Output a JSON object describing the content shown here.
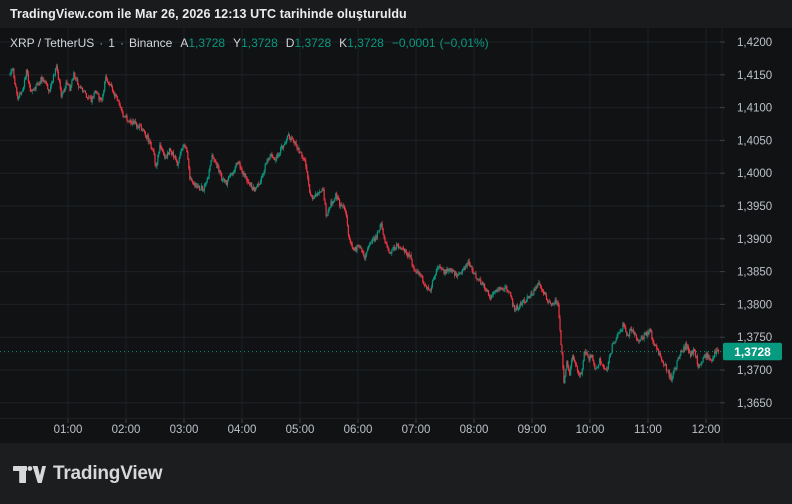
{
  "meta": {
    "attribution": "TradingView.com ile Mar 26, 2026 12:13 UTC tarihinde oluşturuldu"
  },
  "symbol_bar": {
    "title": "XRP / TetherUS",
    "separator": "·",
    "interval": "1",
    "exchange": "Binance",
    "ohlc": [
      {
        "label": "A",
        "value": "1,3728"
      },
      {
        "label": "Y",
        "value": "1,3728"
      },
      {
        "label": "D",
        "value": "1,3728"
      },
      {
        "label": "K",
        "value": "1,3728"
      }
    ],
    "change_abs": "−0,0001",
    "change_pct": "(−0,01%)"
  },
  "chart_data": {
    "type": "candlestick",
    "title": "XRP / TetherUS · 1 · Binance",
    "interval": "1 minute",
    "session_start": "00:00",
    "session_end": "12:13",
    "session_minutes": 733,
    "x_ticks": [
      "01:00",
      "02:00",
      "03:00",
      "04:00",
      "05:00",
      "06:00",
      "07:00",
      "08:00",
      "09:00",
      "10:00",
      "11:00",
      "12:00"
    ],
    "y_tick_values": [
      1.42,
      1.415,
      1.41,
      1.405,
      1.4,
      1.395,
      1.39,
      1.385,
      1.38,
      1.375,
      1.37,
      1.365
    ],
    "y_tick_labels": [
      "1,4200",
      "1,4150",
      "1,4100",
      "1,4050",
      "1,4000",
      "1,3950",
      "1,3900",
      "1,3850",
      "1,3800",
      "1,3750",
      "1,3700",
      "1,3650"
    ],
    "ylim": [
      1.363,
      1.4222
    ],
    "grid": true,
    "last_price": 1.3728,
    "last_price_label": "1,3728",
    "session_high": 1.4165,
    "session_low": 1.3668,
    "price_anchors": [
      [
        0,
        1.415
      ],
      [
        3,
        1.4157
      ],
      [
        8,
        1.4112
      ],
      [
        13,
        1.4128
      ],
      [
        17,
        1.4158
      ],
      [
        22,
        1.4122
      ],
      [
        28,
        1.4135
      ],
      [
        34,
        1.4146
      ],
      [
        40,
        1.4126
      ],
      [
        44,
        1.414
      ],
      [
        48,
        1.4163
      ],
      [
        53,
        1.4118
      ],
      [
        58,
        1.4136
      ],
      [
        62,
        1.4128
      ],
      [
        66,
        1.415
      ],
      [
        72,
        1.413
      ],
      [
        78,
        1.412
      ],
      [
        84,
        1.4112
      ],
      [
        88,
        1.4125
      ],
      [
        95,
        1.4108
      ],
      [
        99,
        1.4148
      ],
      [
        104,
        1.4134
      ],
      [
        108,
        1.412
      ],
      [
        112,
        1.4108
      ],
      [
        118,
        1.4086
      ],
      [
        124,
        1.408
      ],
      [
        131,
        1.4074
      ],
      [
        137,
        1.4066
      ],
      [
        141,
        1.4058
      ],
      [
        146,
        1.4042
      ],
      [
        149,
        1.4028
      ],
      [
        151,
        1.4008
      ],
      [
        155,
        1.404
      ],
      [
        160,
        1.4022
      ],
      [
        165,
        1.4035
      ],
      [
        170,
        1.4026
      ],
      [
        174,
        1.4012
      ],
      [
        179,
        1.4046
      ],
      [
        183,
        1.4032
      ],
      [
        186,
        1.3992
      ],
      [
        193,
        1.398
      ],
      [
        200,
        1.3976
      ],
      [
        205,
        1.3995
      ],
      [
        209,
        1.4027
      ],
      [
        215,
        1.4008
      ],
      [
        219,
        1.3992
      ],
      [
        224,
        1.3986
      ],
      [
        230,
        1.4
      ],
      [
        235,
        1.4017
      ],
      [
        239,
        1.4008
      ],
      [
        245,
        1.399
      ],
      [
        253,
        1.3974
      ],
      [
        258,
        1.3984
      ],
      [
        264,
        1.401
      ],
      [
        270,
        1.403
      ],
      [
        274,
        1.402
      ],
      [
        281,
        1.4038
      ],
      [
        288,
        1.4056
      ],
      [
        292,
        1.405
      ],
      [
        297,
        1.404
      ],
      [
        301,
        1.403
      ],
      [
        305,
        1.4022
      ],
      [
        309,
        1.398
      ],
      [
        313,
        1.3958
      ],
      [
        319,
        1.3972
      ],
      [
        324,
        1.3976
      ],
      [
        327,
        1.3934
      ],
      [
        331,
        1.3952
      ],
      [
        337,
        1.3966
      ],
      [
        342,
        1.395
      ],
      [
        347,
        1.3944
      ],
      [
        351,
        1.3896
      ],
      [
        356,
        1.3882
      ],
      [
        362,
        1.389
      ],
      [
        367,
        1.3872
      ],
      [
        373,
        1.3892
      ],
      [
        380,
        1.3906
      ],
      [
        384,
        1.3922
      ],
      [
        389,
        1.3892
      ],
      [
        394,
        1.3878
      ],
      [
        400,
        1.3892
      ],
      [
        407,
        1.3882
      ],
      [
        414,
        1.3872
      ],
      [
        418,
        1.3854
      ],
      [
        424,
        1.3846
      ],
      [
        429,
        1.3832
      ],
      [
        434,
        1.382
      ],
      [
        442,
        1.3858
      ],
      [
        449,
        1.385
      ],
      [
        456,
        1.3854
      ],
      [
        463,
        1.3844
      ],
      [
        474,
        1.3864
      ],
      [
        482,
        1.3842
      ],
      [
        488,
        1.3832
      ],
      [
        497,
        1.3812
      ],
      [
        505,
        1.3822
      ],
      [
        515,
        1.3824
      ],
      [
        522,
        1.3792
      ],
      [
        530,
        1.3802
      ],
      [
        538,
        1.3812
      ],
      [
        547,
        1.3833
      ],
      [
        554,
        1.3812
      ],
      [
        560,
        1.3797
      ],
      [
        564,
        1.3806
      ],
      [
        567,
        1.3796
      ],
      [
        570,
        1.3742
      ],
      [
        573,
        1.3682
      ],
      [
        576,
        1.3712
      ],
      [
        579,
        1.3692
      ],
      [
        582,
        1.3722
      ],
      [
        586,
        1.3702
      ],
      [
        591,
        1.369
      ],
      [
        594,
        1.373
      ],
      [
        598,
        1.3716
      ],
      [
        602,
        1.3724
      ],
      [
        606,
        1.37
      ],
      [
        610,
        1.3714
      ],
      [
        617,
        1.3698
      ],
      [
        623,
        1.3736
      ],
      [
        628,
        1.3752
      ],
      [
        634,
        1.3768
      ],
      [
        639,
        1.3754
      ],
      [
        644,
        1.3762
      ],
      [
        650,
        1.3744
      ],
      [
        656,
        1.3752
      ],
      [
        662,
        1.376
      ],
      [
        666,
        1.3742
      ],
      [
        671,
        1.3726
      ],
      [
        677,
        1.371
      ],
      [
        684,
        1.3686
      ],
      [
        689,
        1.3706
      ],
      [
        694,
        1.3726
      ],
      [
        699,
        1.3738
      ],
      [
        704,
        1.3722
      ],
      [
        708,
        1.3732
      ],
      [
        712,
        1.3706
      ],
      [
        717,
        1.3716
      ],
      [
        721,
        1.3724
      ],
      [
        725,
        1.3712
      ],
      [
        729,
        1.3726
      ],
      [
        733,
        1.3728
      ]
    ],
    "colors": {
      "up": "#089981",
      "down": "#f23645",
      "accent": "#089981",
      "grid": "#1e2126",
      "axis_text": "#bdc1c8",
      "background": "#101214"
    }
  },
  "footer": {
    "brand": "TradingView"
  }
}
